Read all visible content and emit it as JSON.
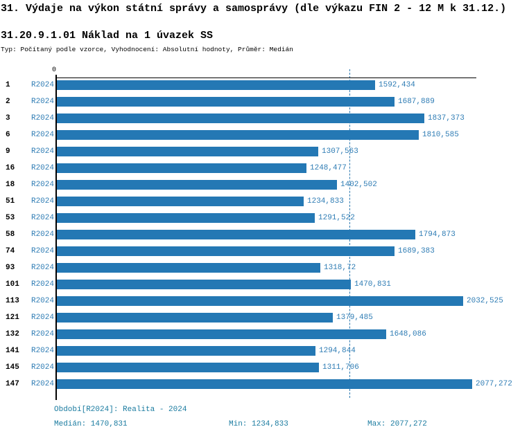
{
  "header": {
    "title": "31. Výdaje na výkon státní správy a samosprávy (dle výkazu FIN 2 - 12 M k 31.12.)",
    "subtitle": "31.20.9.1.01 Náklad na 1 úvazek SS",
    "meta": "Typ: Počítaný podle vzorce, Vyhodnocení: Absolutní hodnoty, Průměr: Medián"
  },
  "axis": {
    "origin_label": "0"
  },
  "rows": [
    {
      "id": "1",
      "period": "R2024",
      "value_label": "1592,434"
    },
    {
      "id": "2",
      "period": "R2024",
      "value_label": "1687,889"
    },
    {
      "id": "3",
      "period": "R2024",
      "value_label": "1837,373"
    },
    {
      "id": "6",
      "period": "R2024",
      "value_label": "1810,585"
    },
    {
      "id": "9",
      "period": "R2024",
      "value_label": "1307,563"
    },
    {
      "id": "16",
      "period": "R2024",
      "value_label": "1248,477"
    },
    {
      "id": "18",
      "period": "R2024",
      "value_label": "1402,502"
    },
    {
      "id": "51",
      "period": "R2024",
      "value_label": "1234,833"
    },
    {
      "id": "53",
      "period": "R2024",
      "value_label": "1291,522"
    },
    {
      "id": "58",
      "period": "R2024",
      "value_label": "1794,873"
    },
    {
      "id": "74",
      "period": "R2024",
      "value_label": "1689,383"
    },
    {
      "id": "93",
      "period": "R2024",
      "value_label": "1318,72"
    },
    {
      "id": "101",
      "period": "R2024",
      "value_label": "1470,831"
    },
    {
      "id": "113",
      "period": "R2024",
      "value_label": "2032,525"
    },
    {
      "id": "121",
      "period": "R2024",
      "value_label": "1379,485"
    },
    {
      "id": "132",
      "period": "R2024",
      "value_label": "1648,086"
    },
    {
      "id": "141",
      "period": "R2024",
      "value_label": "1294,844"
    },
    {
      "id": "145",
      "period": "R2024",
      "value_label": "1311,706"
    },
    {
      "id": "147",
      "period": "R2024",
      "value_label": "2077,272"
    }
  ],
  "footer": {
    "period_line": "Období[R2024]: Realita - 2024",
    "median": "Medián: 1470,831",
    "min": "Min: 1234,833",
    "max": "Max: 2077,272"
  },
  "colors": {
    "bar": "#2478b4",
    "value_text": "#2e7cb4",
    "footer_text": "#1a7ba0",
    "median_line": "#2c79b0",
    "axis": "#000000"
  },
  "chart_data": {
    "type": "bar",
    "orientation": "horizontal",
    "title": "31. Výdaje na výkon státní správy a samosprávy (dle výkazu FIN 2 - 12 M k 31.12.)",
    "subtitle": "31.20.9.1.01 Náklad na 1 úvazek SS",
    "categories": [
      "1",
      "2",
      "3",
      "6",
      "9",
      "16",
      "18",
      "51",
      "53",
      "58",
      "74",
      "93",
      "101",
      "113",
      "121",
      "132",
      "141",
      "145",
      "147"
    ],
    "series": [
      {
        "name": "R2024",
        "values": [
          1592.434,
          1687.889,
          1837.373,
          1810.585,
          1307.563,
          1248.477,
          1402.502,
          1234.833,
          1291.522,
          1794.873,
          1689.383,
          1318.72,
          1470.831,
          2032.525,
          1379.485,
          1648.086,
          1294.844,
          1311.706,
          2077.272
        ]
      }
    ],
    "median": 1470.831,
    "min": 1234.833,
    "max": 2077.272,
    "xlim": [
      0,
      2102
    ],
    "grid": false,
    "legend_position": "none",
    "annotations": [
      "median dashed vertical line at 1470,831"
    ]
  }
}
